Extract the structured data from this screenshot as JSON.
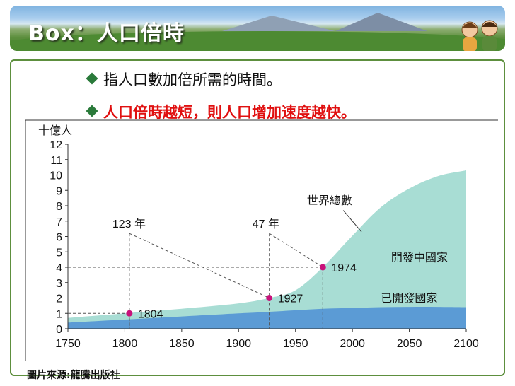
{
  "header": {
    "title": "Box：人口倍時"
  },
  "bullets": [
    {
      "text": "指人口數加倍所需的時間。",
      "color": "#111111"
    },
    {
      "text": "人口倍時越短，則人口增加速度越快。",
      "color": "#e01010"
    }
  ],
  "source": "圖片來源:龍騰出版社",
  "chart_data": {
    "type": "area",
    "ylabel": "十億人",
    "x_ticks": [
      1750,
      1800,
      1850,
      1900,
      1950,
      2000,
      2050,
      2100
    ],
    "y_ticks": [
      0,
      1,
      2,
      3,
      4,
      5,
      6,
      7,
      8,
      9,
      10,
      11,
      12
    ],
    "xlim": [
      1750,
      2100
    ],
    "ylim": [
      0,
      12
    ],
    "x": [
      1750,
      1800,
      1850,
      1900,
      1927,
      1950,
      1974,
      2000,
      2025,
      2050,
      2075,
      2100
    ],
    "series": [
      {
        "name": "已開發國家",
        "color": "#5b9bd5",
        "values": [
          0.4,
          0.6,
          0.8,
          1.0,
          1.1,
          1.2,
          1.3,
          1.35,
          1.4,
          1.42,
          1.42,
          1.4
        ]
      },
      {
        "name": "開發中國家",
        "color": "#a8ddd4",
        "values": [
          0.3,
          0.4,
          0.5,
          0.65,
          0.9,
          1.3,
          2.7,
          4.7,
          6.5,
          7.7,
          8.5,
          8.9
        ]
      }
    ],
    "total_label": "世界總數",
    "points": [
      {
        "x": 1804,
        "y": 1,
        "label": "1804"
      },
      {
        "x": 1927,
        "y": 2,
        "label": "1927"
      },
      {
        "x": 1974,
        "y": 4,
        "label": "1974"
      }
    ],
    "annotations": [
      {
        "text": "123 年",
        "x": 1805,
        "y": 6.2
      },
      {
        "text": "47 年",
        "x": 1928,
        "y": 6.2
      }
    ],
    "point_color": "#c8127a"
  }
}
